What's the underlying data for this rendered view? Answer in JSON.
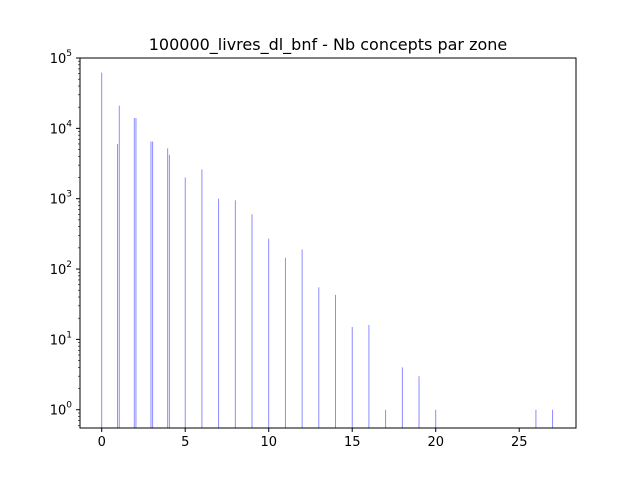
{
  "chart_data": {
    "type": "bar",
    "title": "100000_livres_dl_bnf - Nb concepts par zone",
    "xlabel": "",
    "ylabel": "",
    "xlim": [
      -1.3,
      28.4
    ],
    "ylim": [
      0.55,
      100000
    ],
    "yscale": "log",
    "x_ticks": [
      0,
      5,
      10,
      15,
      20,
      25
    ],
    "x_tick_labels": [
      "0",
      "5",
      "10",
      "15",
      "20",
      "25"
    ],
    "y_ticks": [
      1,
      10,
      100,
      1000,
      10000,
      100000
    ],
    "y_tick_labels": [
      {
        "base": "10",
        "exp": "0"
      },
      {
        "base": "10",
        "exp": "1"
      },
      {
        "base": "10",
        "exp": "2"
      },
      {
        "base": "10",
        "exp": "3"
      },
      {
        "base": "10",
        "exp": "4"
      },
      {
        "base": "10",
        "exp": "5"
      }
    ],
    "bar_color": "#0000ff",
    "bar_opacity": 0.5,
    "grid": false,
    "bars": [
      {
        "x": 0.0,
        "value": 62000
      },
      {
        "x": 0.95,
        "value": 6000
      },
      {
        "x": 1.05,
        "value": 21000
      },
      {
        "x": 1.95,
        "value": 14000
      },
      {
        "x": 2.05,
        "value": 14000
      },
      {
        "x": 2.95,
        "value": 6500
      },
      {
        "x": 3.05,
        "value": 6500
      },
      {
        "x": 3.95,
        "value": 5200
      },
      {
        "x": 4.05,
        "value": 4200
      },
      {
        "x": 5.0,
        "value": 2000
      },
      {
        "x": 6.0,
        "value": 2600
      },
      {
        "x": 7.0,
        "value": 1000
      },
      {
        "x": 8.0,
        "value": 950
      },
      {
        "x": 9.0,
        "value": 600
      },
      {
        "x": 10.0,
        "value": 270
      },
      {
        "x": 11.0,
        "value": 145
      },
      {
        "x": 12.0,
        "value": 190
      },
      {
        "x": 13.0,
        "value": 55
      },
      {
        "x": 14.0,
        "value": 43
      },
      {
        "x": 15.0,
        "value": 15
      },
      {
        "x": 16.0,
        "value": 16
      },
      {
        "x": 17.0,
        "value": 1
      },
      {
        "x": 18.0,
        "value": 4
      },
      {
        "x": 19.0,
        "value": 3
      },
      {
        "x": 20.0,
        "value": 1
      },
      {
        "x": 26.0,
        "value": 1
      },
      {
        "x": 27.0,
        "value": 1
      }
    ]
  }
}
